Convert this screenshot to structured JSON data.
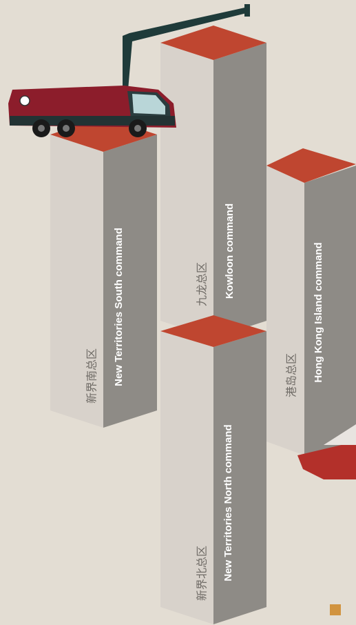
{
  "commands": [
    {
      "zh": "新界南总区",
      "en": "New Territories South command"
    },
    {
      "zh": "九龙总区",
      "en": "Kowloon command"
    },
    {
      "zh": "新界北总区",
      "en": "New Territories North command"
    },
    {
      "zh": "港岛总区",
      "en": "Hong Kong Island command"
    }
  ]
}
